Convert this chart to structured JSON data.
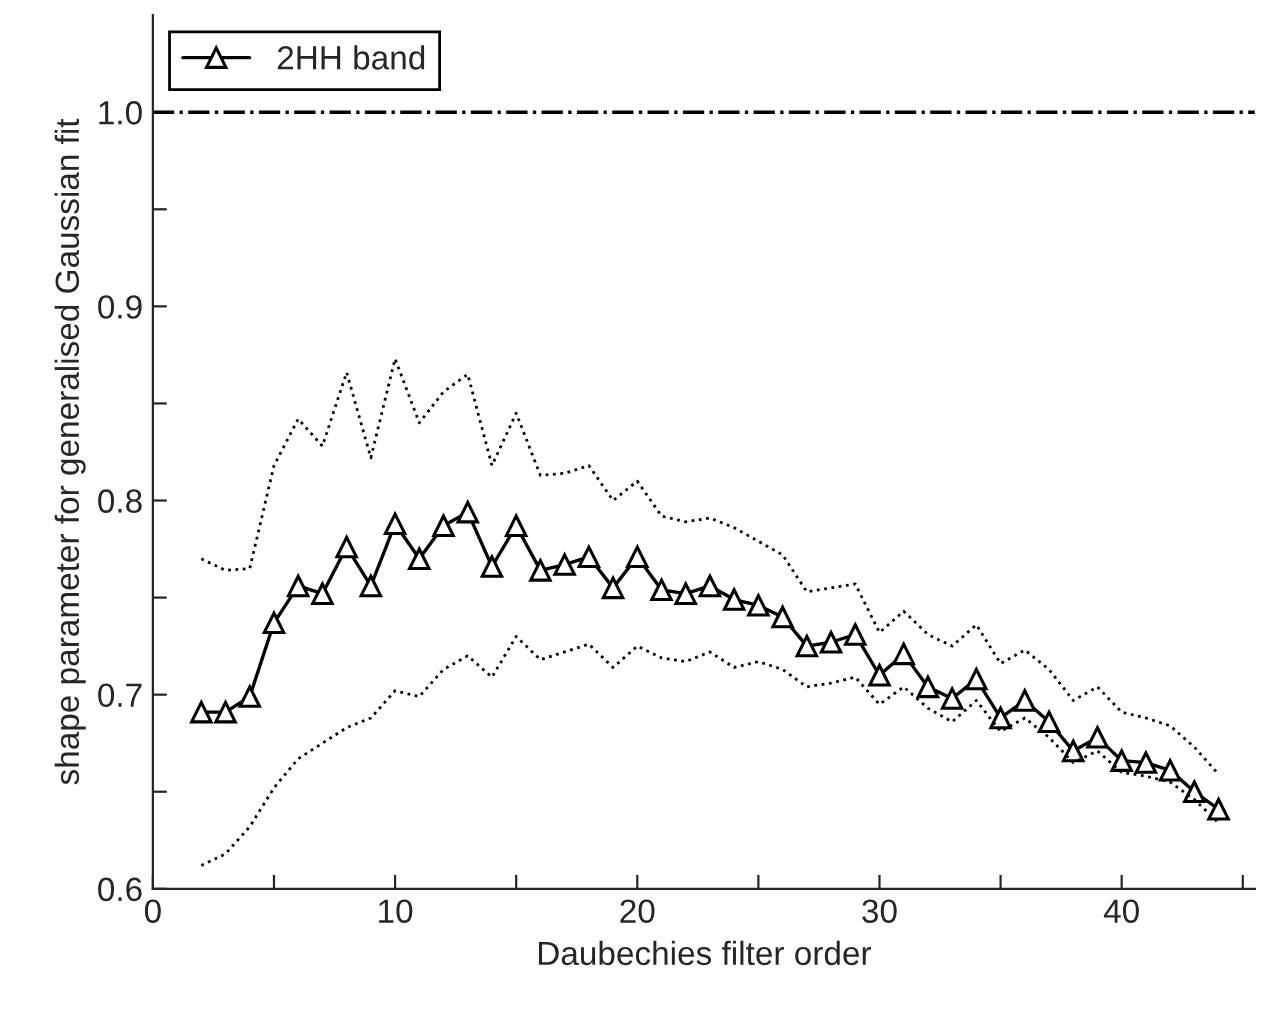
{
  "chart_data": {
    "type": "line",
    "xlabel": "Daubechies filter order",
    "ylabel": "shape parameter for generalised Gaussian fit",
    "x": [
      2,
      3,
      4,
      5,
      6,
      7,
      8,
      9,
      10,
      11,
      12,
      13,
      14,
      15,
      16,
      17,
      18,
      19,
      20,
      21,
      22,
      23,
      24,
      25,
      26,
      27,
      28,
      29,
      30,
      31,
      32,
      33,
      34,
      35,
      36,
      37,
      38,
      39,
      40,
      41,
      42,
      43,
      44
    ],
    "series": [
      {
        "name": "2HH band",
        "color": "#000000",
        "marker": "triangle",
        "line_style": "solid",
        "values": [
          0.691,
          0.691,
          0.699,
          0.737,
          0.756,
          0.752,
          0.776,
          0.756,
          0.788,
          0.77,
          0.787,
          0.794,
          0.766,
          0.787,
          0.764,
          0.767,
          0.771,
          0.755,
          0.771,
          0.754,
          0.752,
          0.756,
          0.749,
          0.746,
          0.74,
          0.725,
          0.727,
          0.731,
          0.71,
          0.721,
          0.704,
          0.698,
          0.708,
          0.688,
          0.697,
          0.686,
          0.671,
          0.678,
          0.666,
          0.665,
          0.661,
          0.65,
          0.641
        ]
      },
      {
        "color": "#000000",
        "marker": "none",
        "line_style": "dotted",
        "values": [
          0.77,
          0.764,
          0.765,
          0.818,
          0.842,
          0.828,
          0.866,
          0.822,
          0.873,
          0.84,
          0.856,
          0.865,
          0.818,
          0.845,
          0.813,
          0.814,
          0.818,
          0.8,
          0.81,
          0.792,
          0.789,
          0.791,
          0.786,
          0.779,
          0.772,
          0.753,
          0.755,
          0.757,
          0.732,
          0.743,
          0.731,
          0.725,
          0.736,
          0.716,
          0.723,
          0.713,
          0.697,
          0.704,
          0.691,
          0.688,
          0.684,
          0.673,
          0.659
        ]
      },
      {
        "color": "#000000",
        "marker": "none",
        "line_style": "dotted",
        "values": [
          0.612,
          0.618,
          0.632,
          0.652,
          0.667,
          0.675,
          0.683,
          0.688,
          0.702,
          0.699,
          0.713,
          0.72,
          0.709,
          0.73,
          0.718,
          0.722,
          0.726,
          0.714,
          0.725,
          0.719,
          0.717,
          0.722,
          0.714,
          0.717,
          0.713,
          0.704,
          0.706,
          0.709,
          0.695,
          0.704,
          0.693,
          0.686,
          0.697,
          0.681,
          0.688,
          0.678,
          0.665,
          0.671,
          0.66,
          0.658,
          0.655,
          0.646,
          0.634
        ]
      }
    ],
    "xlim": [
      0,
      45.5
    ],
    "ylim": [
      0.6,
      1.05
    ],
    "xticks": [
      0,
      {
        "value": 5,
        "label": null
      },
      10,
      {
        "value": 15,
        "label": null
      },
      20,
      {
        "value": 25,
        "label": null
      },
      30,
      {
        "value": 35,
        "label": null
      },
      40,
      {
        "value": 45,
        "label": null
      }
    ],
    "yticks": [
      0.6,
      {
        "value": 0.65,
        "label": null
      },
      0.7,
      {
        "value": 0.75,
        "label": null
      },
      0.8,
      {
        "value": 0.85,
        "label": null
      },
      0.9,
      {
        "value": 0.95,
        "label": null
      },
      {
        "value": 1.0,
        "label": "1.0"
      }
    ],
    "ref_lines": [
      {
        "axis": "y",
        "value": 1.0,
        "color": "#000000",
        "line_style": "dashdot"
      }
    ],
    "grid": false,
    "legend": "top left"
  }
}
